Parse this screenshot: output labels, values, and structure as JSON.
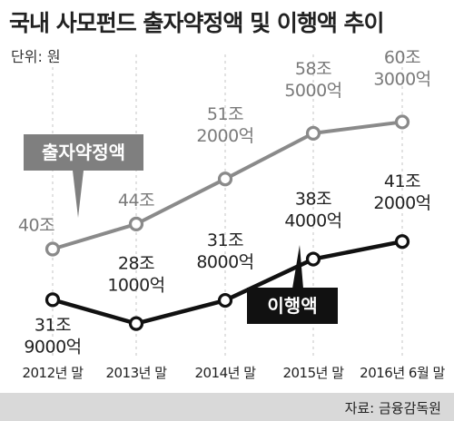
{
  "title": "국내 사모펀드 출자약정액 및 이행액 추이",
  "unit_label": "단위: 원",
  "source": "자료: 금융감독원",
  "colors": {
    "commitment": "#8a8a8a",
    "execution": "#111111",
    "commitment_badge": "#7f7f7f",
    "execution_badge": "#111111",
    "grid": "#cfcfcf",
    "text_dark": "#222222",
    "text_gray": "#7a7a7a",
    "source_bar": "#d9d9d9"
  },
  "chart_data": {
    "type": "line",
    "title": "국내 사모펀드 출자약정액 및 이행액 추이",
    "unit": "원",
    "categories": [
      "2012년 말",
      "2013년 말",
      "2014년 말",
      "2015년 말",
      "2016년 6월 말"
    ],
    "grid": "vertical-dashed",
    "series": [
      {
        "name": "출자약정액",
        "values_won_jo": [
          40,
          44,
          51.2,
          58.5,
          60.3
        ],
        "labels": [
          [
            "40조"
          ],
          [
            "44조"
          ],
          [
            "51조",
            "2000억"
          ],
          [
            "58조",
            "5000억"
          ],
          [
            "60조",
            "3000억"
          ]
        ],
        "color_key": "commitment"
      },
      {
        "name": "이행액",
        "values_won_jo": [
          31.9,
          28.1,
          31.8,
          38.4,
          41.2
        ],
        "labels": [
          [
            "31조",
            "9000억"
          ],
          [
            "28조",
            "1000억"
          ],
          [
            "31조",
            "8000억"
          ],
          [
            "38조",
            "4000억"
          ],
          [
            "41조",
            "2000억"
          ]
        ],
        "color_key": "execution"
      }
    ]
  }
}
